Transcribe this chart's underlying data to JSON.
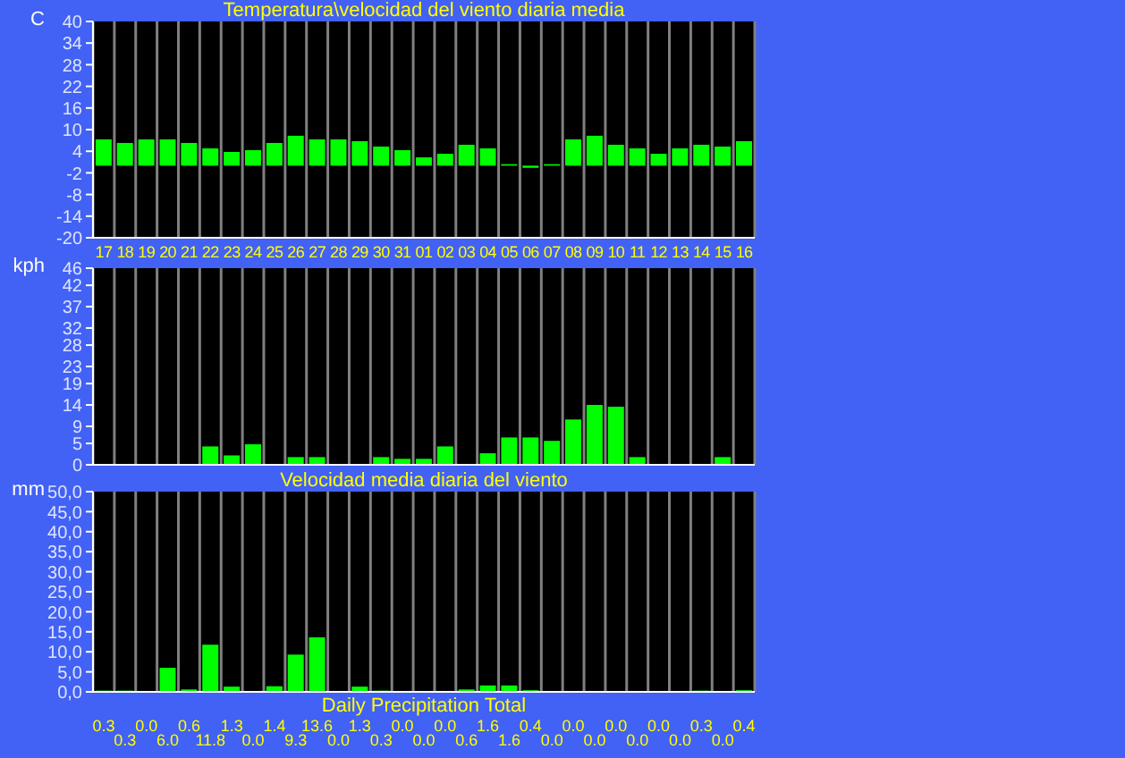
{
  "chart_data": [
    {
      "type": "bar",
      "title": "Temperatura\\velocidad del viento diaria media",
      "ylabel": "C",
      "categories": [
        "17",
        "18",
        "19",
        "20",
        "21",
        "22",
        "23",
        "24",
        "25",
        "26",
        "27",
        "28",
        "29",
        "30",
        "31",
        "01",
        "02",
        "03",
        "04",
        "05",
        "06",
        "07",
        "08",
        "09",
        "10",
        "11",
        "12",
        "13",
        "14",
        "15",
        "16"
      ],
      "values": [
        7.3,
        6.3,
        7.3,
        7.3,
        6.3,
        4.8,
        3.8,
        4.3,
        6.3,
        8.3,
        7.3,
        7.3,
        6.8,
        5.3,
        4.3,
        2.3,
        3.3,
        5.8,
        4.8,
        0.4,
        -0.6,
        0.4,
        7.3,
        8.3,
        5.8,
        4.8,
        3.3,
        4.8,
        5.8,
        5.3,
        6.8
      ],
      "color": "#00ff00",
      "ylim": [
        -20,
        40
      ],
      "yticks": [
        -20,
        -14,
        -8,
        -2,
        4,
        10,
        16,
        22,
        28,
        34,
        40
      ],
      "grid": "x"
    },
    {
      "type": "bar",
      "ylabel": "kph",
      "categories": [
        "17",
        "18",
        "19",
        "20",
        "21",
        "22",
        "23",
        "24",
        "25",
        "26",
        "27",
        "28",
        "29",
        "30",
        "31",
        "01",
        "02",
        "03",
        "04",
        "05",
        "06",
        "07",
        "08",
        "09",
        "10",
        "11",
        "12",
        "13",
        "14",
        "15",
        "16"
      ],
      "values": [
        0,
        0,
        0,
        0,
        0,
        4.3,
        2.2,
        4.8,
        0,
        1.8,
        1.8,
        0,
        0,
        1.8,
        1.4,
        1.4,
        4.3,
        0,
        2.7,
        6.4,
        6.4,
        5.6,
        10.6,
        14.0,
        13.6,
        1.8,
        0,
        0,
        0,
        1.8,
        0
      ],
      "color": "#00ff00",
      "ylim": [
        0,
        46
      ],
      "yticks": [
        0,
        5,
        9,
        14,
        19,
        23,
        28,
        32,
        37,
        42,
        46
      ],
      "grid": "x",
      "tick_labels": "y"
    },
    {
      "type": "bar",
      "title": "Velocidad media diaria del viento",
      "xlabel": "Daily Precipitation Total",
      "ylabel": "mm",
      "categories": [
        "17",
        "18",
        "19",
        "20",
        "21",
        "22",
        "23",
        "24",
        "25",
        "26",
        "27",
        "28",
        "29",
        "30",
        "31",
        "01",
        "02",
        "03",
        "04",
        "05",
        "06",
        "07",
        "08",
        "09",
        "10",
        "11",
        "12",
        "13",
        "14",
        "15",
        "16"
      ],
      "values": [
        0.3,
        0.3,
        0.0,
        6.0,
        0.6,
        11.8,
        1.3,
        0.0,
        1.4,
        9.3,
        13.6,
        0.0,
        1.3,
        0.3,
        0.0,
        0.0,
        0.0,
        0.6,
        1.6,
        1.6,
        0.4,
        0.0,
        0.0,
        0.0,
        0.0,
        0.0,
        0.0,
        0.0,
        0.3,
        0.0,
        0.4
      ],
      "value_labels": [
        "0.3",
        "0.3",
        "0.0",
        "6.0",
        "0.6",
        "11.8",
        "1.3",
        "0.0",
        "1.4",
        "9.3",
        "13.6",
        "0.0",
        "1.3",
        "0.3",
        "0.0",
        "0.0",
        "0.0",
        "0.6",
        "1.6",
        "1.6",
        "0.4",
        "0.0",
        "0.0",
        "0.0",
        "0.0",
        "0.0",
        "0.0",
        "0.0",
        "0.3",
        "0.0",
        "0.4"
      ],
      "color": "#00ff00",
      "ylim": [
        0,
        50
      ],
      "yticks": [
        {
          "value": 0,
          "label": "0,0"
        },
        {
          "value": 5,
          "label": "5,0"
        },
        {
          "value": 10,
          "label": "10,0"
        },
        {
          "value": 15,
          "label": "15,0"
        },
        {
          "value": 20,
          "label": "20,0"
        },
        {
          "value": 25,
          "label": "25,0"
        },
        {
          "value": 30,
          "label": "30,0"
        },
        {
          "value": 35,
          "label": "35,0"
        },
        {
          "value": 40,
          "label": "40,0"
        },
        {
          "value": 45,
          "label": "45,0"
        },
        {
          "value": 50,
          "label": "50,0"
        }
      ],
      "grid": "x",
      "tick_labels": "y"
    }
  ]
}
